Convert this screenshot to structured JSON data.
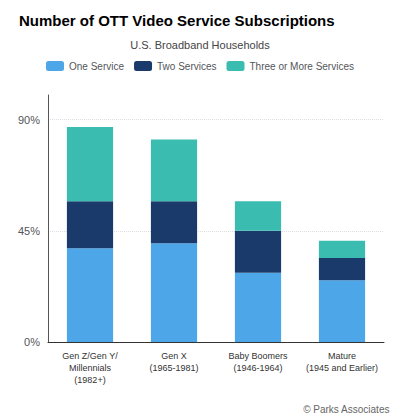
{
  "chart_data": {
    "type": "bar",
    "title": "Number of OTT Video Service Subscriptions",
    "subtitle": "U.S. Broadband Households",
    "categories": [
      "Gen Z/Gen Y/\nMillennials\n(1982+)",
      "Gen X\n(1965-1981)",
      "Baby Boomers\n(1946-1964)",
      "Mature\n(1945 and Earlier)"
    ],
    "series": [
      {
        "name": "One Service",
        "color": "#4da6e8",
        "values": [
          38,
          40,
          28,
          25
        ]
      },
      {
        "name": "Two Services",
        "color": "#1a3a6b",
        "values": [
          19,
          17,
          17,
          9
        ]
      },
      {
        "name": "Three or More Services",
        "color": "#3abcb0",
        "values": [
          30,
          25,
          12,
          7
        ]
      }
    ],
    "stacked": true,
    "ylim": [
      0,
      100
    ],
    "yticks": [
      {
        "value": 0,
        "label": "0%"
      },
      {
        "value": 45,
        "label": "45%"
      },
      {
        "value": 90,
        "label": "90%"
      }
    ],
    "grid": true,
    "legend": "top",
    "annotations": [
      "© Parks Associates"
    ]
  }
}
